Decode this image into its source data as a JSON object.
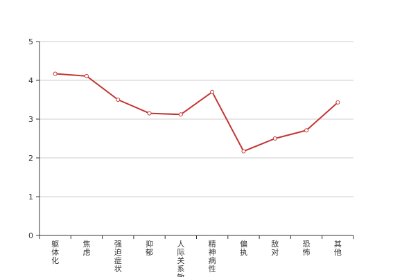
{
  "chart_data": {
    "type": "line",
    "categories": [
      "躯体化",
      "焦虑",
      "强迫症状",
      "抑郁",
      "人际关系敏感",
      "精神病性",
      "偏执",
      "敌对",
      "恐怖",
      "其他"
    ],
    "values": [
      4.17,
      4.11,
      3.5,
      3.15,
      3.12,
      3.7,
      2.17,
      2.5,
      2.71,
      3.43
    ],
    "ylim": [
      0,
      5
    ],
    "yticks": [
      0,
      1,
      2,
      3,
      4,
      5
    ],
    "grid": true,
    "legend": "none",
    "colors": {
      "line": "#c23531",
      "grid": "#cccccc",
      "axis": "#333333",
      "marker_fill": "#ffffff"
    }
  }
}
